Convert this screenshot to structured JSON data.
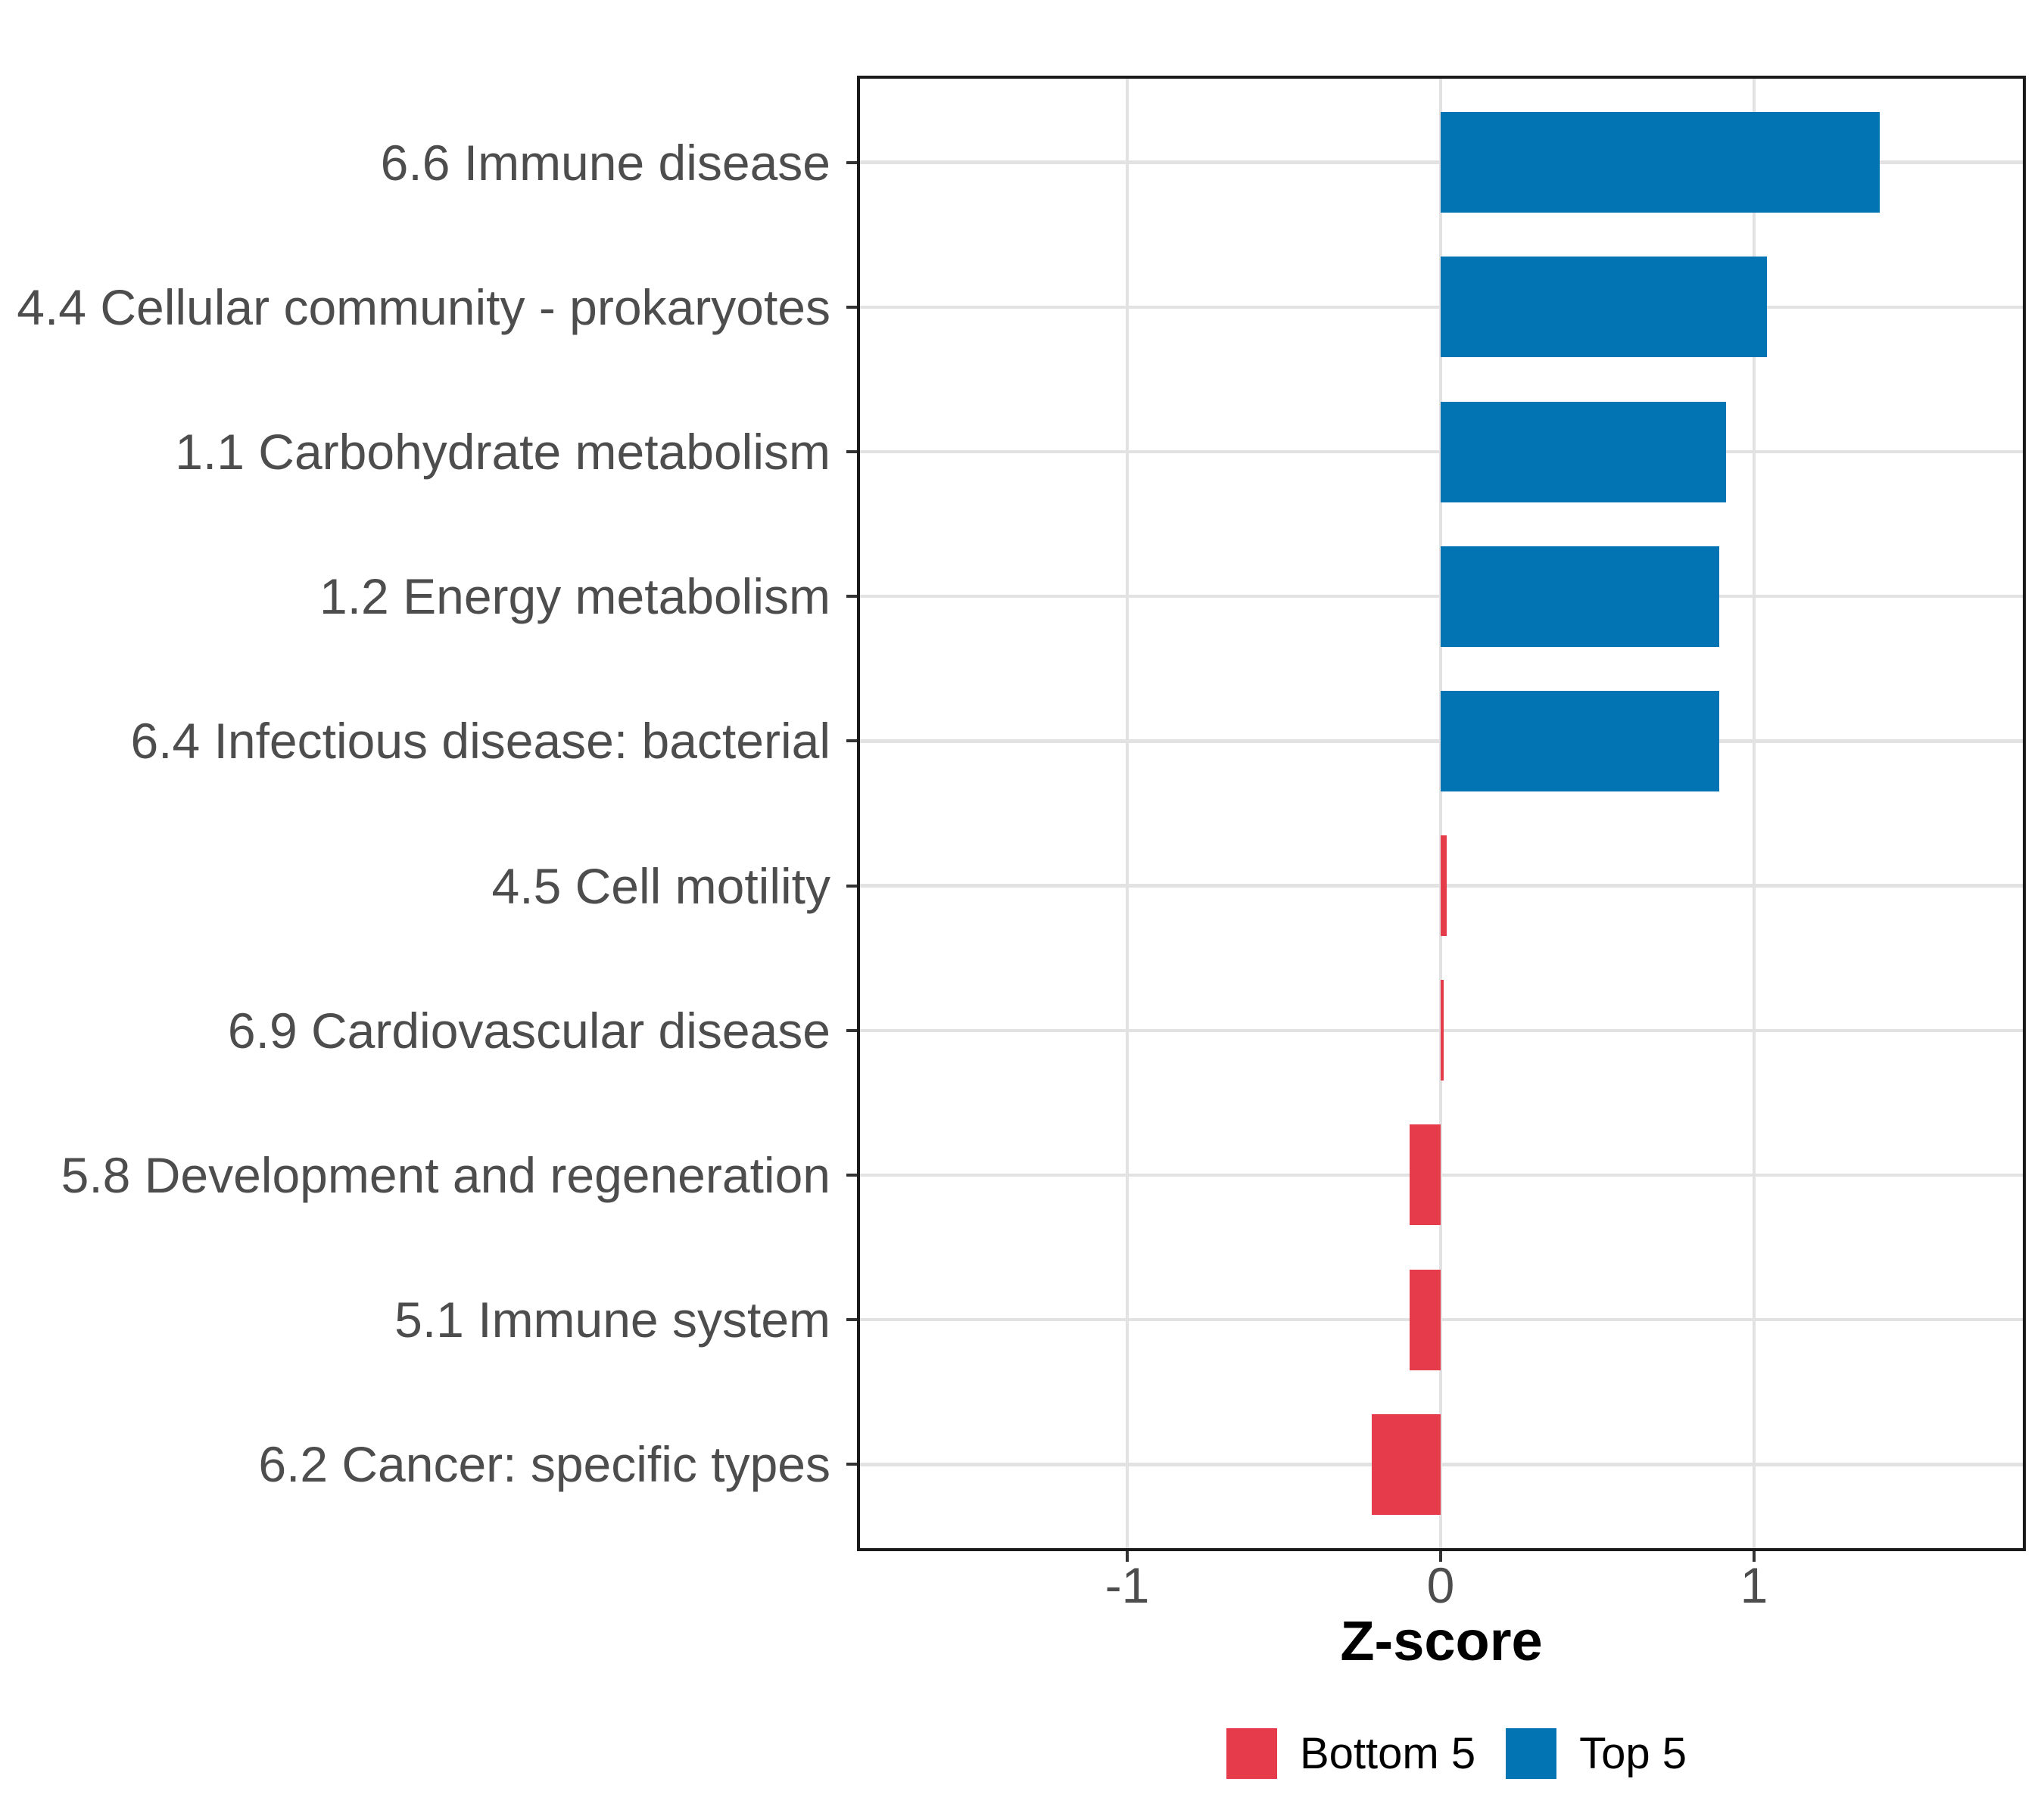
{
  "chart_data": {
    "type": "bar",
    "orientation": "horizontal",
    "title": "",
    "xlabel": "Z-score",
    "ylabel": "",
    "categories": [
      "6.6 Immune disease",
      "4.4 Cellular community - prokaryotes",
      "1.1 Carbohydrate metabolism",
      "1.2 Energy metabolism",
      "6.4 Infectious disease: bacterial",
      "4.5 Cell motility",
      "6.9 Cardiovascular disease",
      "5.8 Development and regeneration",
      "5.1 Immune system",
      "6.2 Cancer: specific types"
    ],
    "values": [
      1.4,
      1.04,
      0.91,
      0.89,
      0.89,
      0.02,
      0.01,
      -0.1,
      -0.1,
      -0.22
    ],
    "series_group_of_each_bar": [
      "Top 5",
      "Top 5",
      "Top 5",
      "Top 5",
      "Top 5",
      "Bottom 5",
      "Bottom 5",
      "Bottom 5",
      "Bottom 5",
      "Bottom 5"
    ],
    "x_ticks": [
      -1,
      0,
      1
    ],
    "x_tick_labels": [
      "-1",
      "0",
      "1"
    ],
    "xlim": [
      -1.86,
      1.87
    ],
    "grid": true,
    "legend_position": "bottom",
    "legend": [
      {
        "label": "Bottom 5",
        "color": "#e53b4a"
      },
      {
        "label": "Top 5",
        "color": "#0374b3"
      }
    ],
    "colors": {
      "top5_bar": "#0374b3",
      "bottom5_bar": "#e53b4a",
      "gridline": "#e2e2e2",
      "panel_border": "#1a1a1a",
      "axis_text": "#4d4d4d",
      "tick_mark": "#333333",
      "axis_title": "#000000",
      "background": "#ffffff"
    }
  }
}
